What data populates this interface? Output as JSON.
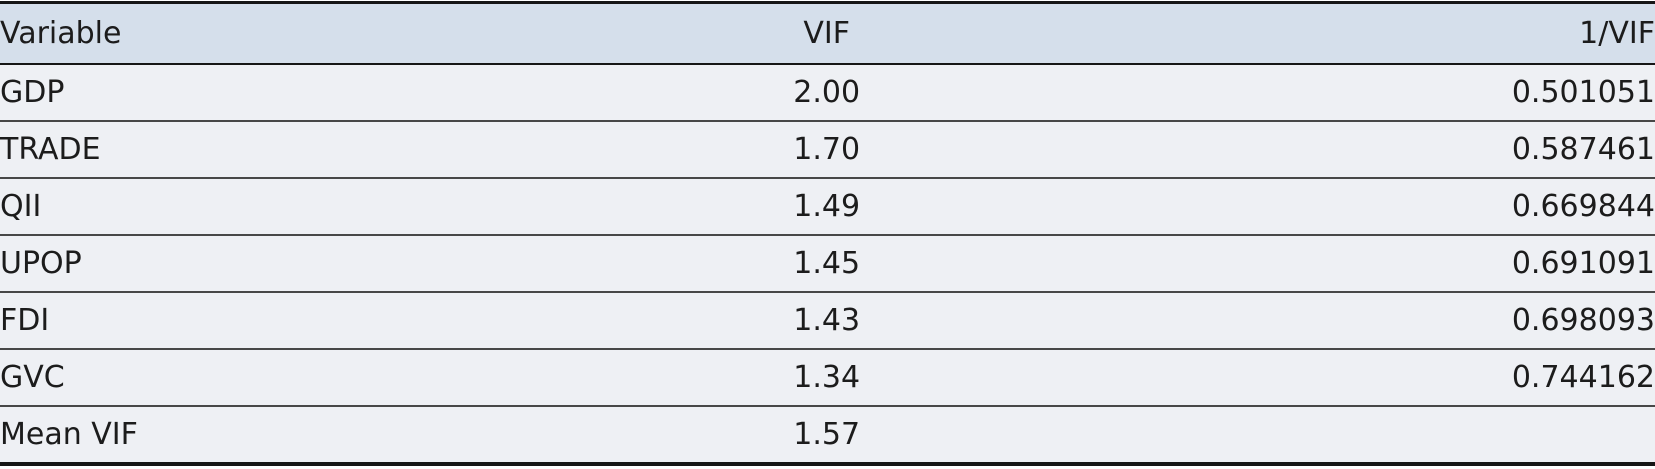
{
  "table": {
    "columns": [
      {
        "label": "Variable",
        "align": "left"
      },
      {
        "label": "VIF",
        "align": "center"
      },
      {
        "label": "1/VIF",
        "align": "right"
      }
    ],
    "rows": [
      {
        "variable": "GDP",
        "vif": "2.00",
        "inv_vif": "0.501051"
      },
      {
        "variable": "TRADE",
        "vif": "1.70",
        "inv_vif": "0.587461"
      },
      {
        "variable": "QII",
        "vif": "1.49",
        "inv_vif": "0.669844"
      },
      {
        "variable": "UPOP",
        "vif": "1.45",
        "inv_vif": "0.691091"
      },
      {
        "variable": "FDI",
        "vif": "1.43",
        "inv_vif": "0.698093"
      },
      {
        "variable": "GVC",
        "vif": "1.34",
        "inv_vif": "0.744162"
      },
      {
        "variable": "Mean VIF",
        "vif": "1.57",
        "inv_vif": ""
      }
    ]
  },
  "colors": {
    "header_bg": "#d5dfeb",
    "row_bg": "#eef0f4",
    "heavy_border": "#161616",
    "row_border": "#474747",
    "text": "#1c1c1c"
  }
}
